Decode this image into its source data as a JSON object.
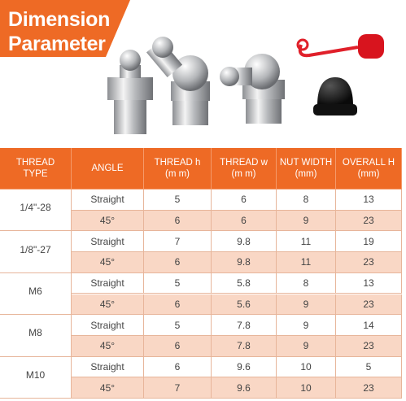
{
  "header": {
    "title": [
      "Dimension",
      "Parameter"
    ]
  },
  "table": {
    "header": [
      [
        "THREAD",
        "TYPE"
      ],
      [
        "ANGLE"
      ],
      [
        "THREAD h",
        "(m m)"
      ],
      [
        "THREAD w",
        "(m m)"
      ],
      [
        "NUT WIDTH",
        "(mm)"
      ],
      [
        "OVERALL H",
        "(mm)"
      ]
    ],
    "groups": [
      {
        "thread": "1/4\"-28",
        "rows": [
          [
            "Straight",
            "5",
            "6",
            "8",
            "13"
          ],
          [
            "45°",
            "6",
            "6",
            "9",
            "23"
          ]
        ]
      },
      {
        "thread": "1/8\"-27",
        "rows": [
          [
            "Straight",
            "7",
            "9.8",
            "11",
            "19"
          ],
          [
            "45°",
            "6",
            "9.8",
            "11",
            "23"
          ]
        ]
      },
      {
        "thread": "M6",
        "rows": [
          [
            "Straight",
            "5",
            "5.8",
            "8",
            "13"
          ],
          [
            "45°",
            "6",
            "5.6",
            "9",
            "23"
          ]
        ]
      },
      {
        "thread": "M8",
        "rows": [
          [
            "Straight",
            "5",
            "7.8",
            "9",
            "14"
          ],
          [
            "45°",
            "6",
            "7.8",
            "9",
            "23"
          ]
        ]
      },
      {
        "thread": "M10",
        "rows": [
          [
            "Straight",
            "6",
            "9.6",
            "10",
            "5"
          ],
          [
            "45°",
            "7",
            "9.6",
            "10",
            "23"
          ]
        ]
      }
    ]
  }
}
